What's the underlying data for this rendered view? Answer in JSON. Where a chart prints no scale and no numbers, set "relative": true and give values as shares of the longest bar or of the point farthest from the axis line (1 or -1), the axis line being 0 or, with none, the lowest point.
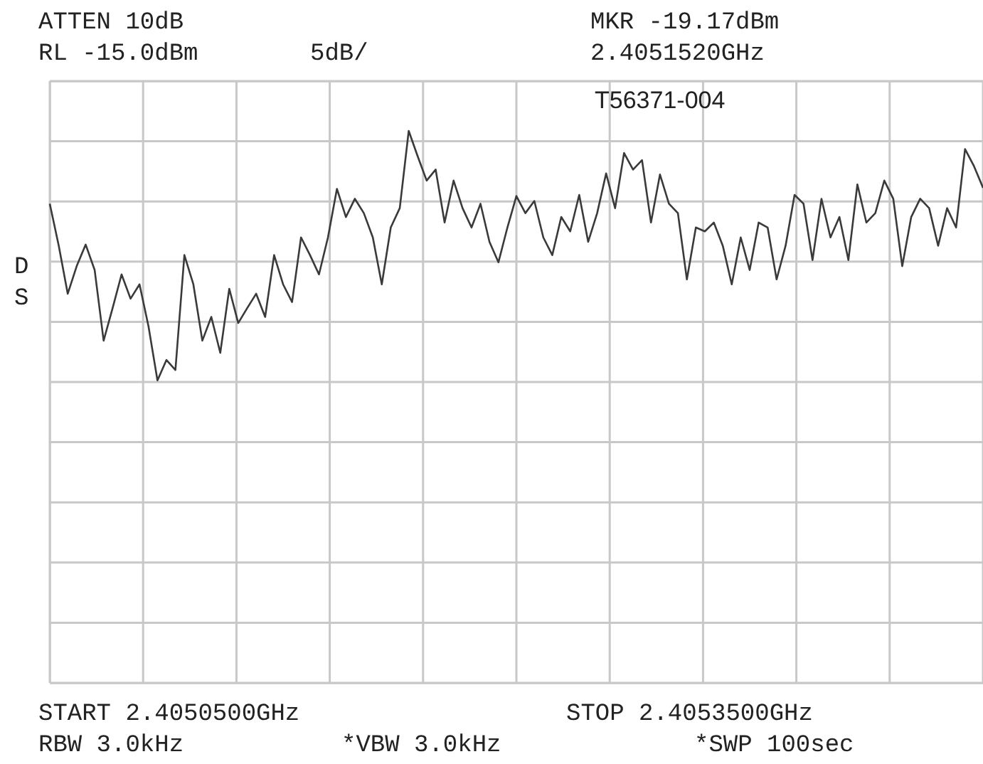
{
  "chart_data": {
    "type": "line",
    "relative": true,
    "grid": true,
    "line_style": "solid",
    "categories": [
      null,
      null,
      null,
      null,
      null,
      null,
      null,
      null,
      null,
      null,
      null,
      null,
      null,
      null,
      null,
      null,
      null,
      null,
      null,
      null,
      null,
      null,
      null,
      null,
      null,
      null,
      null,
      null,
      null,
      null,
      null,
      null,
      null,
      null,
      null,
      null,
      null,
      null,
      null,
      null,
      null,
      null,
      null,
      null,
      null,
      null,
      null,
      null,
      null,
      null,
      null,
      null,
      null,
      null,
      null,
      null,
      null,
      null,
      null,
      null,
      null,
      null,
      null,
      null,
      null,
      null,
      null,
      null,
      null,
      null,
      null,
      null,
      null,
      null,
      null,
      null,
      null,
      null,
      null,
      null,
      null,
      null,
      null,
      null,
      null,
      null,
      null,
      null,
      null,
      null,
      null,
      null,
      null,
      null,
      null,
      null,
      null,
      null,
      null,
      null,
      null,
      null,
      null,
      null,
      null
    ],
    "annotations": [
      "ATTEN 10dB",
      "RL -15.0dBm",
      "5dB/",
      "MKR -19.17dBm",
      "2.4051520GHz",
      "T56371-004",
      "D",
      "S",
      "START 2.4050500GHz",
      "STOP 2.4053500GHz",
      "RBW 3.0kHz",
      "*VBW 3.0kHz",
      "*SWP 100sec"
    ],
    "series": [
      {
        "color": "#3a3a3a",
        "values": [
          0.868,
          0.792,
          0.705,
          0.755,
          0.794,
          0.748,
          0.62,
          0.679,
          0.74,
          0.696,
          0.722,
          0.646,
          0.548,
          0.585,
          0.567,
          0.775,
          0.722,
          0.62,
          0.663,
          0.598,
          0.714,
          0.652,
          0.679,
          0.705,
          0.663,
          0.775,
          0.722,
          0.69,
          0.807,
          0.775,
          0.74,
          0.807,
          0.895,
          0.844,
          0.877,
          0.851,
          0.807,
          0.722,
          0.825,
          0.86,
          1,
          0.954,
          0.91,
          0.93,
          0.834,
          0.91,
          0.86,
          0.825,
          0.868,
          0.799,
          0.762,
          0.825,
          0.882,
          0.851,
          0.873,
          0.807,
          0.775,
          0.844,
          0.818,
          0.884,
          0.799,
          0.851,
          0.923,
          0.86,
          0.96,
          0.93,
          0.947,
          0.834,
          0.921,
          0.868,
          0.851,
          0.731,
          0.825,
          0.818,
          0.834,
          0.792,
          0.722,
          0.807,
          0.748,
          0.834,
          0.825,
          0.731,
          0.792,
          0.884,
          0.868,
          0.766,
          0.877,
          0.807,
          0.844,
          0.766,
          0.903,
          0.834,
          0.851,
          0.91,
          0.877,
          0.755,
          0.844,
          0.877,
          0.86,
          0.792,
          0.86,
          0.825,
          0.967,
          0.936,
          0.897
        ]
      }
    ]
  }
}
